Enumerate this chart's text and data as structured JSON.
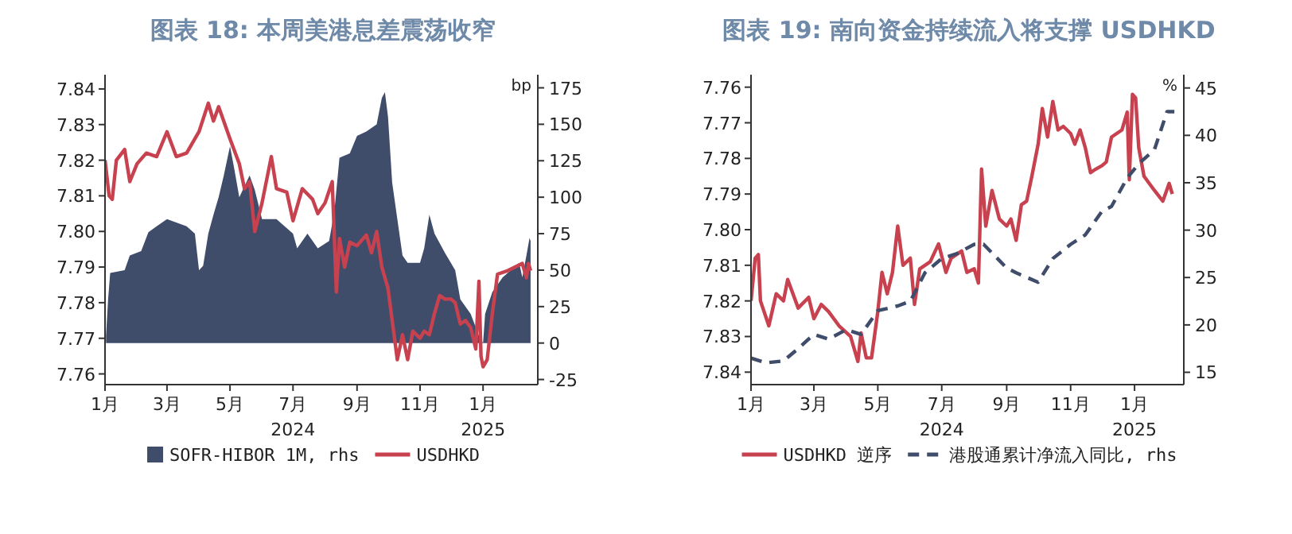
{
  "chart_data": [
    {
      "type": "area",
      "title": "图表 18: 本周美港息差震荡收窄",
      "y2label": "bp",
      "legend": "bottom",
      "grid": false,
      "xlim": [
        "2024-01-01",
        "2025-02-23"
      ],
      "xticks": [
        {
          "value": "2024-01-01",
          "label": "1月"
        },
        {
          "value": "2024-03-01",
          "label": "3月"
        },
        {
          "value": "2024-05-01",
          "label": "5月"
        },
        {
          "value": "2024-07-01",
          "label": "7月\n2024"
        },
        {
          "value": "2024-09-01",
          "label": "9月"
        },
        {
          "value": "2024-11-01",
          "label": "11月"
        },
        {
          "value": "2025-01-01",
          "label": "1月\n2025"
        }
      ],
      "ylim": [
        7.757,
        7.844
      ],
      "yticks": [
        7.76,
        7.77,
        7.78,
        7.79,
        {
          "value": 7.8,
          "label": "7.80"
        },
        7.81,
        7.82,
        7.83,
        7.84
      ],
      "y2lim": [
        -28.5,
        184
      ],
      "y2ticks": [
        -25,
        0,
        25,
        50,
        75,
        100,
        125,
        150,
        175
      ],
      "series": [
        {
          "name": "SOFR-HIBOR 1M, rhs",
          "type": "area",
          "axis": "y2",
          "color": "#3f4d6b",
          "x": [
            "2024-01-02",
            "2024-01-04",
            "2024-01-06",
            "2024-01-20",
            "2024-01-25",
            "2024-02-05",
            "2024-02-12",
            "2024-02-20",
            "2024-03-01",
            "2024-03-20",
            "2024-03-28",
            "2024-04-01",
            "2024-04-05",
            "2024-04-10",
            "2024-04-15",
            "2024-04-20",
            "2024-04-25",
            "2024-05-01",
            "2024-05-05",
            "2024-05-10",
            "2024-05-20",
            "2024-05-25",
            "2024-06-01",
            "2024-06-15",
            "2024-07-01",
            "2024-07-05",
            "2024-07-15",
            "2024-07-25",
            "2024-08-05",
            "2024-08-10",
            "2024-08-15",
            "2024-08-25",
            "2024-09-01",
            "2024-09-10",
            "2024-09-20",
            "2024-09-25",
            "2024-09-28",
            "2024-10-01",
            "2024-10-05",
            "2024-10-10",
            "2024-10-15",
            "2024-10-20",
            "2024-11-01",
            "2024-11-05",
            "2024-11-10",
            "2024-11-15",
            "2024-11-25",
            "2024-12-05",
            "2024-12-10",
            "2024-12-20",
            "2024-12-28",
            "2025-01-01",
            "2025-01-03",
            "2025-01-10",
            "2025-01-20",
            "2025-01-28",
            "2025-02-05",
            "2025-02-08",
            "2025-02-12",
            "2025-02-15",
            "2025-02-16"
          ],
          "values": [
            5,
            30,
            48,
            50,
            60,
            63,
            76,
            80,
            85,
            80,
            75,
            50,
            53,
            75,
            88,
            100,
            115,
            135,
            120,
            100,
            115,
            105,
            85,
            85,
            75,
            65,
            75,
            65,
            70,
            90,
            127,
            130,
            142,
            145,
            150,
            168,
            172,
            155,
            110,
            85,
            60,
            55,
            55,
            65,
            88,
            75,
            62,
            50,
            30,
            20,
            5,
            0,
            20,
            35,
            45,
            50,
            55,
            45,
            60,
            72,
            70
          ]
        },
        {
          "name": "USDHKD",
          "type": "line",
          "color": "#c8414f",
          "x": [
            "2024-01-01",
            "2024-01-05",
            "2024-01-08",
            "2024-01-12",
            "2024-01-20",
            "2024-01-25",
            "2024-02-01",
            "2024-02-10",
            "2024-02-20",
            "2024-03-01",
            "2024-03-10",
            "2024-03-20",
            "2024-04-01",
            "2024-04-10",
            "2024-04-15",
            "2024-04-20",
            "2024-05-01",
            "2024-05-10",
            "2024-05-15",
            "2024-05-20",
            "2024-05-25",
            "2024-06-01",
            "2024-06-10",
            "2024-06-15",
            "2024-06-25",
            "2024-07-01",
            "2024-07-10",
            "2024-07-20",
            "2024-07-25",
            "2024-08-01",
            "2024-08-08",
            "2024-08-12",
            "2024-08-15",
            "2024-08-20",
            "2024-08-25",
            "2024-09-01",
            "2024-09-10",
            "2024-09-15",
            "2024-09-20",
            "2024-09-25",
            "2024-10-01",
            "2024-10-05",
            "2024-10-10",
            "2024-10-15",
            "2024-10-20",
            "2024-10-25",
            "2024-11-01",
            "2024-11-05",
            "2024-11-10",
            "2024-11-15",
            "2024-11-20",
            "2024-11-25",
            "2024-12-01",
            "2024-12-05",
            "2024-12-10",
            "2024-12-15",
            "2024-12-20",
            "2024-12-25",
            "2024-12-28",
            "2024-12-30",
            "2025-01-01",
            "2025-01-05",
            "2025-01-10",
            "2025-01-15",
            "2025-01-25",
            "2025-02-01",
            "2025-02-08",
            "2025-02-12",
            "2025-02-14",
            "2025-02-16"
          ],
          "values": [
            7.82,
            7.81,
            7.809,
            7.82,
            7.823,
            7.814,
            7.819,
            7.822,
            7.821,
            7.828,
            7.821,
            7.822,
            7.828,
            7.836,
            7.831,
            7.835,
            7.826,
            7.819,
            7.812,
            7.814,
            7.8,
            7.808,
            7.821,
            7.812,
            7.811,
            7.803,
            7.812,
            7.809,
            7.805,
            7.808,
            7.814,
            7.783,
            7.798,
            7.79,
            7.797,
            7.796,
            7.799,
            7.794,
            7.8,
            7.79,
            7.784,
            7.775,
            7.764,
            7.771,
            7.764,
            7.772,
            7.77,
            7.772,
            7.771,
            7.777,
            7.782,
            7.781,
            7.781,
            7.78,
            7.774,
            7.775,
            7.773,
            7.767,
            7.786,
            7.765,
            7.762,
            7.764,
            7.777,
            7.788,
            7.789,
            7.79,
            7.791,
            7.787,
            7.791,
            7.789
          ]
        }
      ]
    },
    {
      "type": "line",
      "title": "图表 19: 南向资金持续流入将支撑 USDHKD",
      "y2label": "%",
      "legend": "bottom",
      "grid": false,
      "xlim": [
        "2024-01-01",
        "2025-02-17"
      ],
      "xticks": [
        {
          "value": "2024-01-01",
          "label": "1月"
        },
        {
          "value": "2024-03-01",
          "label": "3月"
        },
        {
          "value": "2024-05-01",
          "label": "5月"
        },
        {
          "value": "2024-07-01",
          "label": "7月\n2024"
        },
        {
          "value": "2024-09-01",
          "label": "9月"
        },
        {
          "value": "2024-11-01",
          "label": "11月"
        },
        {
          "value": "2025-01-01",
          "label": "1月\n2025"
        }
      ],
      "ylim": [
        7.8435,
        7.7565
      ],
      "yticks": [
        7.76,
        7.77,
        7.78,
        7.79,
        {
          "value": 7.8,
          "label": "7.80"
        },
        7.81,
        7.82,
        7.83,
        7.84
      ],
      "y2lim": [
        13.7,
        46.4
      ],
      "y2ticks": [
        15,
        20,
        25,
        30,
        35,
        40,
        45
      ],
      "series": [
        {
          "name": "USDHKD 逆序",
          "color": "#c8414f",
          "line_style": "solid",
          "x": [
            "2024-01-01",
            "2024-01-05",
            "2024-01-08",
            "2024-01-10",
            "2024-01-18",
            "2024-01-25",
            "2024-02-01",
            "2024-02-05",
            "2024-02-15",
            "2024-02-25",
            "2024-03-01",
            "2024-03-08",
            "2024-03-15",
            "2024-03-25",
            "2024-04-05",
            "2024-04-12",
            "2024-04-15",
            "2024-04-20",
            "2024-04-25",
            "2024-05-01",
            "2024-05-05",
            "2024-05-10",
            "2024-05-15",
            "2024-05-20",
            "2024-05-25",
            "2024-06-01",
            "2024-06-05",
            "2024-06-10",
            "2024-06-20",
            "2024-06-28",
            "2024-07-05",
            "2024-07-10",
            "2024-07-20",
            "2024-07-25",
            "2024-08-01",
            "2024-08-05",
            "2024-08-08",
            "2024-08-12",
            "2024-08-18",
            "2024-08-25",
            "2024-09-01",
            "2024-09-05",
            "2024-09-10",
            "2024-09-15",
            "2024-09-20",
            "2024-09-25",
            "2024-10-01",
            "2024-10-05",
            "2024-10-10",
            "2024-10-15",
            "2024-10-20",
            "2024-10-25",
            "2024-11-01",
            "2024-11-05",
            "2024-11-10",
            "2024-11-15",
            "2024-11-20",
            "2024-11-25",
            "2024-12-01",
            "2024-12-05",
            "2024-12-10",
            "2024-12-15",
            "2024-12-20",
            "2024-12-25",
            "2024-12-27",
            "2024-12-30",
            "2025-01-02",
            "2025-01-05",
            "2025-01-10",
            "2025-01-15",
            "2025-01-20",
            "2025-01-28",
            "2025-02-03",
            "2025-02-06"
          ],
          "values": [
            7.82,
            7.808,
            7.807,
            7.82,
            7.827,
            7.818,
            7.82,
            7.814,
            7.822,
            7.819,
            7.825,
            7.821,
            7.823,
            7.827,
            7.83,
            7.837,
            7.829,
            7.836,
            7.836,
            7.823,
            7.812,
            7.818,
            7.812,
            7.799,
            7.81,
            7.808,
            7.821,
            7.811,
            7.809,
            7.804,
            7.812,
            7.808,
            7.806,
            7.812,
            7.811,
            7.815,
            7.783,
            7.799,
            7.789,
            7.797,
            7.799,
            7.797,
            7.803,
            7.793,
            7.792,
            7.785,
            7.776,
            7.766,
            7.774,
            7.764,
            7.772,
            7.771,
            7.773,
            7.776,
            7.772,
            7.777,
            7.784,
            7.783,
            7.782,
            7.781,
            7.774,
            7.773,
            7.772,
            7.767,
            7.786,
            7.762,
            7.763,
            7.777,
            7.785,
            7.787,
            7.789,
            7.792,
            7.787,
            7.79
          ]
        },
        {
          "name": "港股通累计净流入同比, rhs",
          "color": "#3f4d6b",
          "axis": "y2",
          "line_style": "dashed",
          "x": [
            "2024-01-01",
            "2024-01-15",
            "2024-02-01",
            "2024-02-15",
            "2024-03-01",
            "2024-03-15",
            "2024-04-01",
            "2024-04-15",
            "2024-05-01",
            "2024-05-20",
            "2024-06-01",
            "2024-06-15",
            "2024-07-01",
            "2024-07-15",
            "2024-08-01",
            "2024-08-10",
            "2024-09-01",
            "2024-09-10",
            "2024-10-01",
            "2024-10-15",
            "2024-11-01",
            "2024-11-15",
            "2024-12-01",
            "2024-12-10",
            "2024-12-25",
            "2025-01-05",
            "2025-01-20",
            "2025-02-01",
            "2025-02-08"
          ],
          "values": [
            16.5,
            16,
            16.2,
            17.5,
            19,
            18.5,
            19.5,
            19,
            21.5,
            22,
            22.5,
            25.5,
            27,
            27.5,
            28.5,
            28.5,
            26,
            25.5,
            24.5,
            27,
            28.5,
            29.5,
            32,
            32.5,
            35.5,
            37,
            38.5,
            42.5,
            42.5
          ]
        }
      ]
    }
  ]
}
